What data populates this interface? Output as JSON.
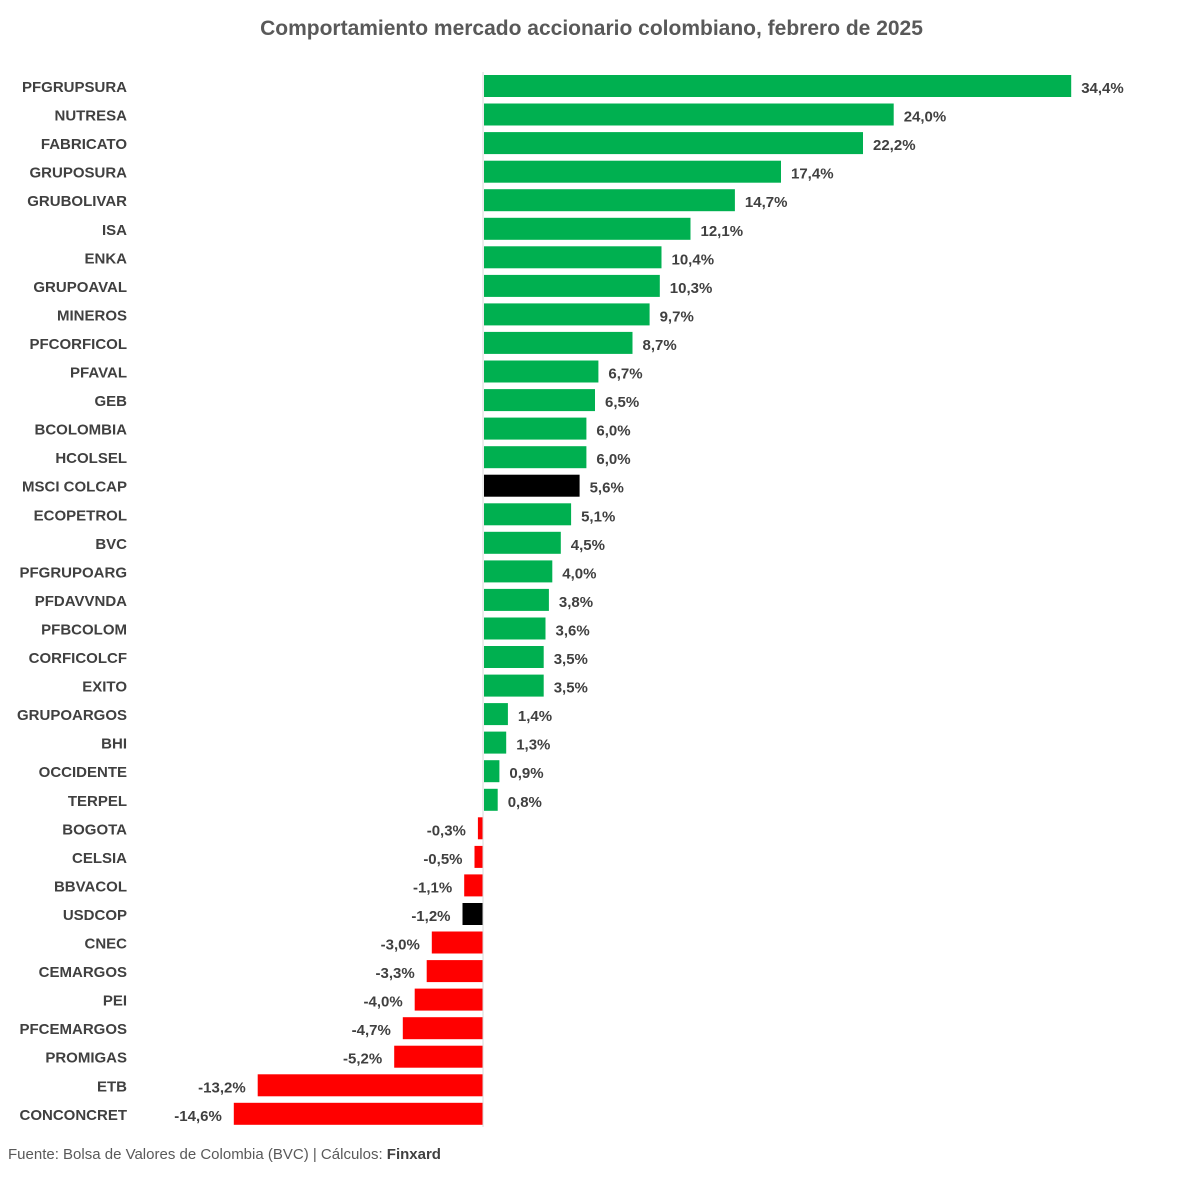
{
  "colors": {
    "positive": "#00B050",
    "negative": "#FF0000",
    "benchmark": "#000000",
    "label": "#404040",
    "axis": "#d9d9d9"
  },
  "footer": {
    "source_text": "Fuente: Bolsa de Valores de Colombia (BVC) | Cálculos: ",
    "brand": "Finxard"
  },
  "chart_data": {
    "type": "bar",
    "orientation": "horizontal",
    "title": "Comportamiento mercado accionario colombiano,  febrero de 2025",
    "unit": "%",
    "xlim": [
      -15,
      35
    ],
    "grid": false,
    "legend": "none",
    "categories": [
      "PFGRUPSURA",
      "NUTRESA",
      "FABRICATO",
      "GRUPOSURA",
      "GRUBOLIVAR",
      "ISA",
      "ENKA",
      "GRUPOAVAL",
      "MINEROS",
      "PFCORFICOL",
      "PFAVAL",
      "GEB",
      "BCOLOMBIA",
      "HCOLSEL",
      "MSCI COLCAP",
      "ECOPETROL",
      "BVC",
      "PFGRUPOARG",
      "PFDAVVNDA",
      "PFBCOLOM",
      "CORFICOLCF",
      "EXITO",
      "GRUPOARGOS",
      "BHI",
      "OCCIDENTE",
      "TERPEL",
      "BOGOTA",
      "CELSIA",
      "BBVACOL",
      "USDCOP",
      "CNEC",
      "CEMARGOS",
      "PEI",
      "PFCEMARGOS",
      "PROMIGAS",
      "ETB",
      "CONCONCRET"
    ],
    "values": [
      34.4,
      24.0,
      22.2,
      17.4,
      14.7,
      12.1,
      10.4,
      10.3,
      9.7,
      8.7,
      6.7,
      6.5,
      6.0,
      6.0,
      5.6,
      5.1,
      4.5,
      4.0,
      3.8,
      3.6,
      3.5,
      3.5,
      1.4,
      1.3,
      0.9,
      0.8,
      -0.3,
      -0.5,
      -1.1,
      -1.2,
      -3.0,
      -3.3,
      -4.0,
      -4.7,
      -5.2,
      -13.2,
      -14.6
    ],
    "data_labels": [
      "34,4%",
      "24,0%",
      "22,2%",
      "17,4%",
      "14,7%",
      "12,1%",
      "10,4%",
      "10,3%",
      "9,7%",
      "8,7%",
      "6,7%",
      "6,5%",
      "6,0%",
      "6,0%",
      "5,6%",
      "5,1%",
      "4,5%",
      "4,0%",
      "3,8%",
      "3,6%",
      "3,5%",
      "3,5%",
      "1,4%",
      "1,3%",
      "0,9%",
      "0,8%",
      "-0,3%",
      "-0,5%",
      "-1,1%",
      "-1,2%",
      "-3,0%",
      "-3,3%",
      "-4,0%",
      "-4,7%",
      "-5,2%",
      "-13,2%",
      "-14,6%"
    ],
    "benchmarks": [
      "MSCI COLCAP",
      "USDCOP"
    ]
  }
}
